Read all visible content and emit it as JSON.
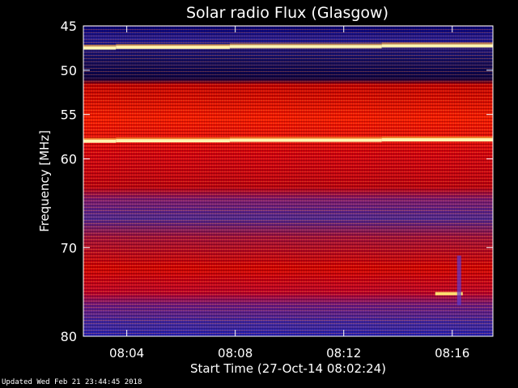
{
  "chart_data": {
    "type": "heatmap",
    "title": "Solar radio Flux (Glasgow)",
    "xlabel": "Start Time (27-Oct-14 08:02:24)",
    "ylabel": "Frequency [MHz]",
    "x_start": "08:02:24",
    "x_end": "08:17:30",
    "x_ticks": [
      "08:04",
      "08:08",
      "08:12",
      "08:16"
    ],
    "ylim": [
      45,
      80
    ],
    "y_inverted": true,
    "y_ticks": [
      45,
      50,
      55,
      60,
      70,
      80
    ],
    "bright_lines_mhz": [
      47.5,
      58
    ],
    "burst": {
      "time": "08:16",
      "freq_mhz": 75.2
    },
    "colormap": [
      "#00007a",
      "#2a2ad0",
      "#8a1a6a",
      "#c80000",
      "#ff2a00",
      "#ff8a3a",
      "#fff2a0"
    ]
  },
  "footer": "Updated Wed Feb 21 23:44:45 2018"
}
